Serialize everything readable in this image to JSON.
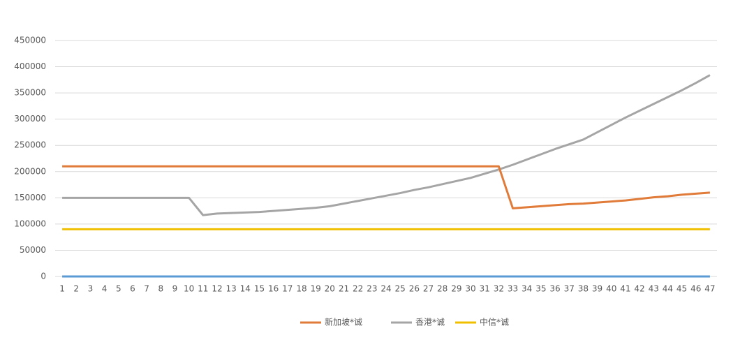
{
  "chart_data": {
    "type": "line",
    "categories": [
      1,
      2,
      3,
      4,
      5,
      6,
      7,
      8,
      9,
      10,
      11,
      12,
      13,
      14,
      15,
      16,
      17,
      18,
      19,
      20,
      21,
      22,
      23,
      24,
      25,
      26,
      27,
      28,
      29,
      30,
      31,
      32,
      33,
      34,
      35,
      36,
      37,
      38,
      39,
      40,
      41,
      42,
      43,
      44,
      45,
      46,
      47
    ],
    "series": [
      {
        "name": "新加坡*诚",
        "color": "#e07b39",
        "values": [
          210000,
          210000,
          210000,
          210000,
          210000,
          210000,
          210000,
          210000,
          210000,
          210000,
          210000,
          210000,
          210000,
          210000,
          210000,
          210000,
          210000,
          210000,
          210000,
          210000,
          210000,
          210000,
          210000,
          210000,
          210000,
          210000,
          210000,
          210000,
          210000,
          210000,
          210000,
          210000,
          130000,
          132000,
          134000,
          136000,
          138000,
          139000,
          141000,
          143000,
          145000,
          148000,
          151000,
          153000,
          156000,
          158000,
          160000
        ]
      },
      {
        "name": "香港*诚",
        "color": "#a5a5a5",
        "values": [
          150000,
          150000,
          150000,
          150000,
          150000,
          150000,
          150000,
          150000,
          150000,
          150000,
          117000,
          120000,
          121000,
          122000,
          123000,
          125000,
          127000,
          129000,
          131000,
          134000,
          139000,
          144000,
          149000,
          154000,
          159000,
          165000,
          170000,
          176000,
          182000,
          188000,
          196000,
          204000,
          213000,
          223000,
          233000,
          243000,
          252000,
          261000,
          275000,
          289000,
          303000,
          316000,
          329000,
          342000,
          355000,
          369000,
          384000
        ]
      },
      {
        "name": "中信*诚",
        "color": "#f0c000",
        "values": [
          90000,
          90000,
          90000,
          90000,
          90000,
          90000,
          90000,
          90000,
          90000,
          90000,
          90000,
          90000,
          90000,
          90000,
          90000,
          90000,
          90000,
          90000,
          90000,
          90000,
          90000,
          90000,
          90000,
          90000,
          90000,
          90000,
          90000,
          90000,
          90000,
          90000,
          90000,
          90000,
          90000,
          90000,
          90000,
          90000,
          90000,
          90000,
          90000,
          90000,
          90000,
          90000,
          90000,
          90000,
          90000,
          90000,
          90000
        ]
      },
      {
        "color": "#5b9bd5",
        "values": [
          0,
          0,
          0,
          0,
          0,
          0,
          0,
          0,
          0,
          0,
          0,
          0,
          0,
          0,
          0,
          0,
          0,
          0,
          0,
          0,
          0,
          0,
          0,
          0,
          0,
          0,
          0,
          0,
          0,
          0,
          0,
          0,
          0,
          0,
          0,
          0,
          0,
          0,
          0,
          0,
          0,
          0,
          0,
          0,
          0,
          0,
          0
        ]
      }
    ],
    "ylim": [
      0,
      450000
    ],
    "yticks": [
      0,
      50000,
      100000,
      150000,
      200000,
      250000,
      300000,
      350000,
      400000,
      450000
    ],
    "grid": true
  }
}
